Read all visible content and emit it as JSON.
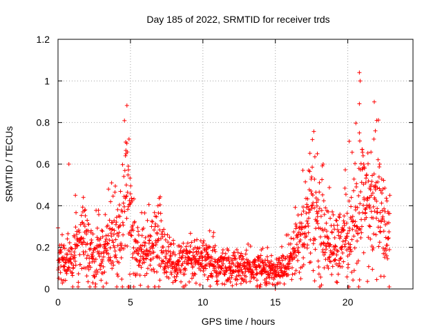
{
  "chart_data": {
    "type": "scatter",
    "title": "Day 185 of 2022, SRMTID for receiver trds",
    "xlabel": "GPS time / hours",
    "ylabel": "SRMTID / TECUs",
    "xlim": [
      0,
      24.5
    ],
    "ylim": [
      0,
      1.2
    ],
    "xticks": [
      0,
      5,
      10,
      15,
      20
    ],
    "xtick_labels": [
      "0",
      "5",
      "10",
      "15",
      "20"
    ],
    "yticks": [
      0,
      0.2,
      0.4,
      0.6,
      0.8,
      1,
      1.2
    ],
    "ytick_labels": [
      "0",
      "0.2",
      "0.4",
      "0.6",
      "0.8",
      "1",
      "1.2"
    ],
    "grid": true,
    "marker": "+",
    "color": "#ff0000",
    "profile": [
      [
        0.0,
        0.15
      ],
      [
        0.5,
        0.13
      ],
      [
        1.0,
        0.16
      ],
      [
        1.5,
        0.22
      ],
      [
        2.0,
        0.2
      ],
      [
        2.5,
        0.16
      ],
      [
        3.0,
        0.19
      ],
      [
        3.5,
        0.2
      ],
      [
        4.0,
        0.24
      ],
      [
        4.5,
        0.36
      ],
      [
        4.8,
        0.47
      ],
      [
        5.0,
        0.3
      ],
      [
        5.3,
        0.17
      ],
      [
        6.0,
        0.16
      ],
      [
        6.5,
        0.19
      ],
      [
        7.0,
        0.24
      ],
      [
        7.5,
        0.15
      ],
      [
        8.0,
        0.13
      ],
      [
        9.0,
        0.12
      ],
      [
        10.0,
        0.13
      ],
      [
        11.0,
        0.11
      ],
      [
        12.0,
        0.1
      ],
      [
        13.0,
        0.1
      ],
      [
        14.0,
        0.1
      ],
      [
        15.0,
        0.08
      ],
      [
        15.5,
        0.1
      ],
      [
        16.0,
        0.14
      ],
      [
        16.5,
        0.2
      ],
      [
        17.0,
        0.3
      ],
      [
        17.5,
        0.36
      ],
      [
        18.0,
        0.3
      ],
      [
        18.5,
        0.25
      ],
      [
        19.0,
        0.2
      ],
      [
        19.5,
        0.2
      ],
      [
        20.0,
        0.23
      ],
      [
        20.5,
        0.34
      ],
      [
        21.0,
        0.42
      ],
      [
        21.5,
        0.38
      ],
      [
        22.0,
        0.37
      ],
      [
        22.5,
        0.3
      ],
      [
        22.9,
        0.25
      ]
    ],
    "highlights": [
      {
        "x": 0.75,
        "y": 0.6
      },
      {
        "x": 1.2,
        "y": 0.45
      },
      {
        "x": 1.75,
        "y": 0.44
      },
      {
        "x": 3.7,
        "y": 0.51
      },
      {
        "x": 4.7,
        "y": 0.65
      },
      {
        "x": 4.75,
        "y": 0.7
      },
      {
        "x": 4.9,
        "y": 0.72
      },
      {
        "x": 4.85,
        "y": 0.59
      },
      {
        "x": 6.9,
        "y": 0.4
      },
      {
        "x": 16.9,
        "y": 0.57
      },
      {
        "x": 17.3,
        "y": 0.57
      },
      {
        "x": 17.9,
        "y": 0.65
      },
      {
        "x": 18.3,
        "y": 0.6
      },
      {
        "x": 20.1,
        "y": 0.71
      },
      {
        "x": 20.8,
        "y": 1.04
      },
      {
        "x": 20.85,
        "y": 1.0
      },
      {
        "x": 20.8,
        "y": 0.89
      },
      {
        "x": 20.8,
        "y": 0.75
      },
      {
        "x": 21.0,
        "y": 0.67
      },
      {
        "x": 21.1,
        "y": 0.6
      },
      {
        "x": 22.0,
        "y": 0.81
      },
      {
        "x": 21.9,
        "y": 0.76
      },
      {
        "x": 21.8,
        "y": 0.72
      },
      {
        "x": 22.2,
        "y": 0.6
      },
      {
        "x": 21.3,
        "y": 0.55
      },
      {
        "x": 21.6,
        "y": 0.5
      },
      {
        "x": 22.9,
        "y": 0.45
      },
      {
        "x": 22.5,
        "y": 0.06
      },
      {
        "x": 15.0,
        "y": 0.0
      },
      {
        "x": 2.4,
        "y": 0.03
      },
      {
        "x": 0.4,
        "y": 0.04
      }
    ],
    "density_per_hour": 70
  }
}
